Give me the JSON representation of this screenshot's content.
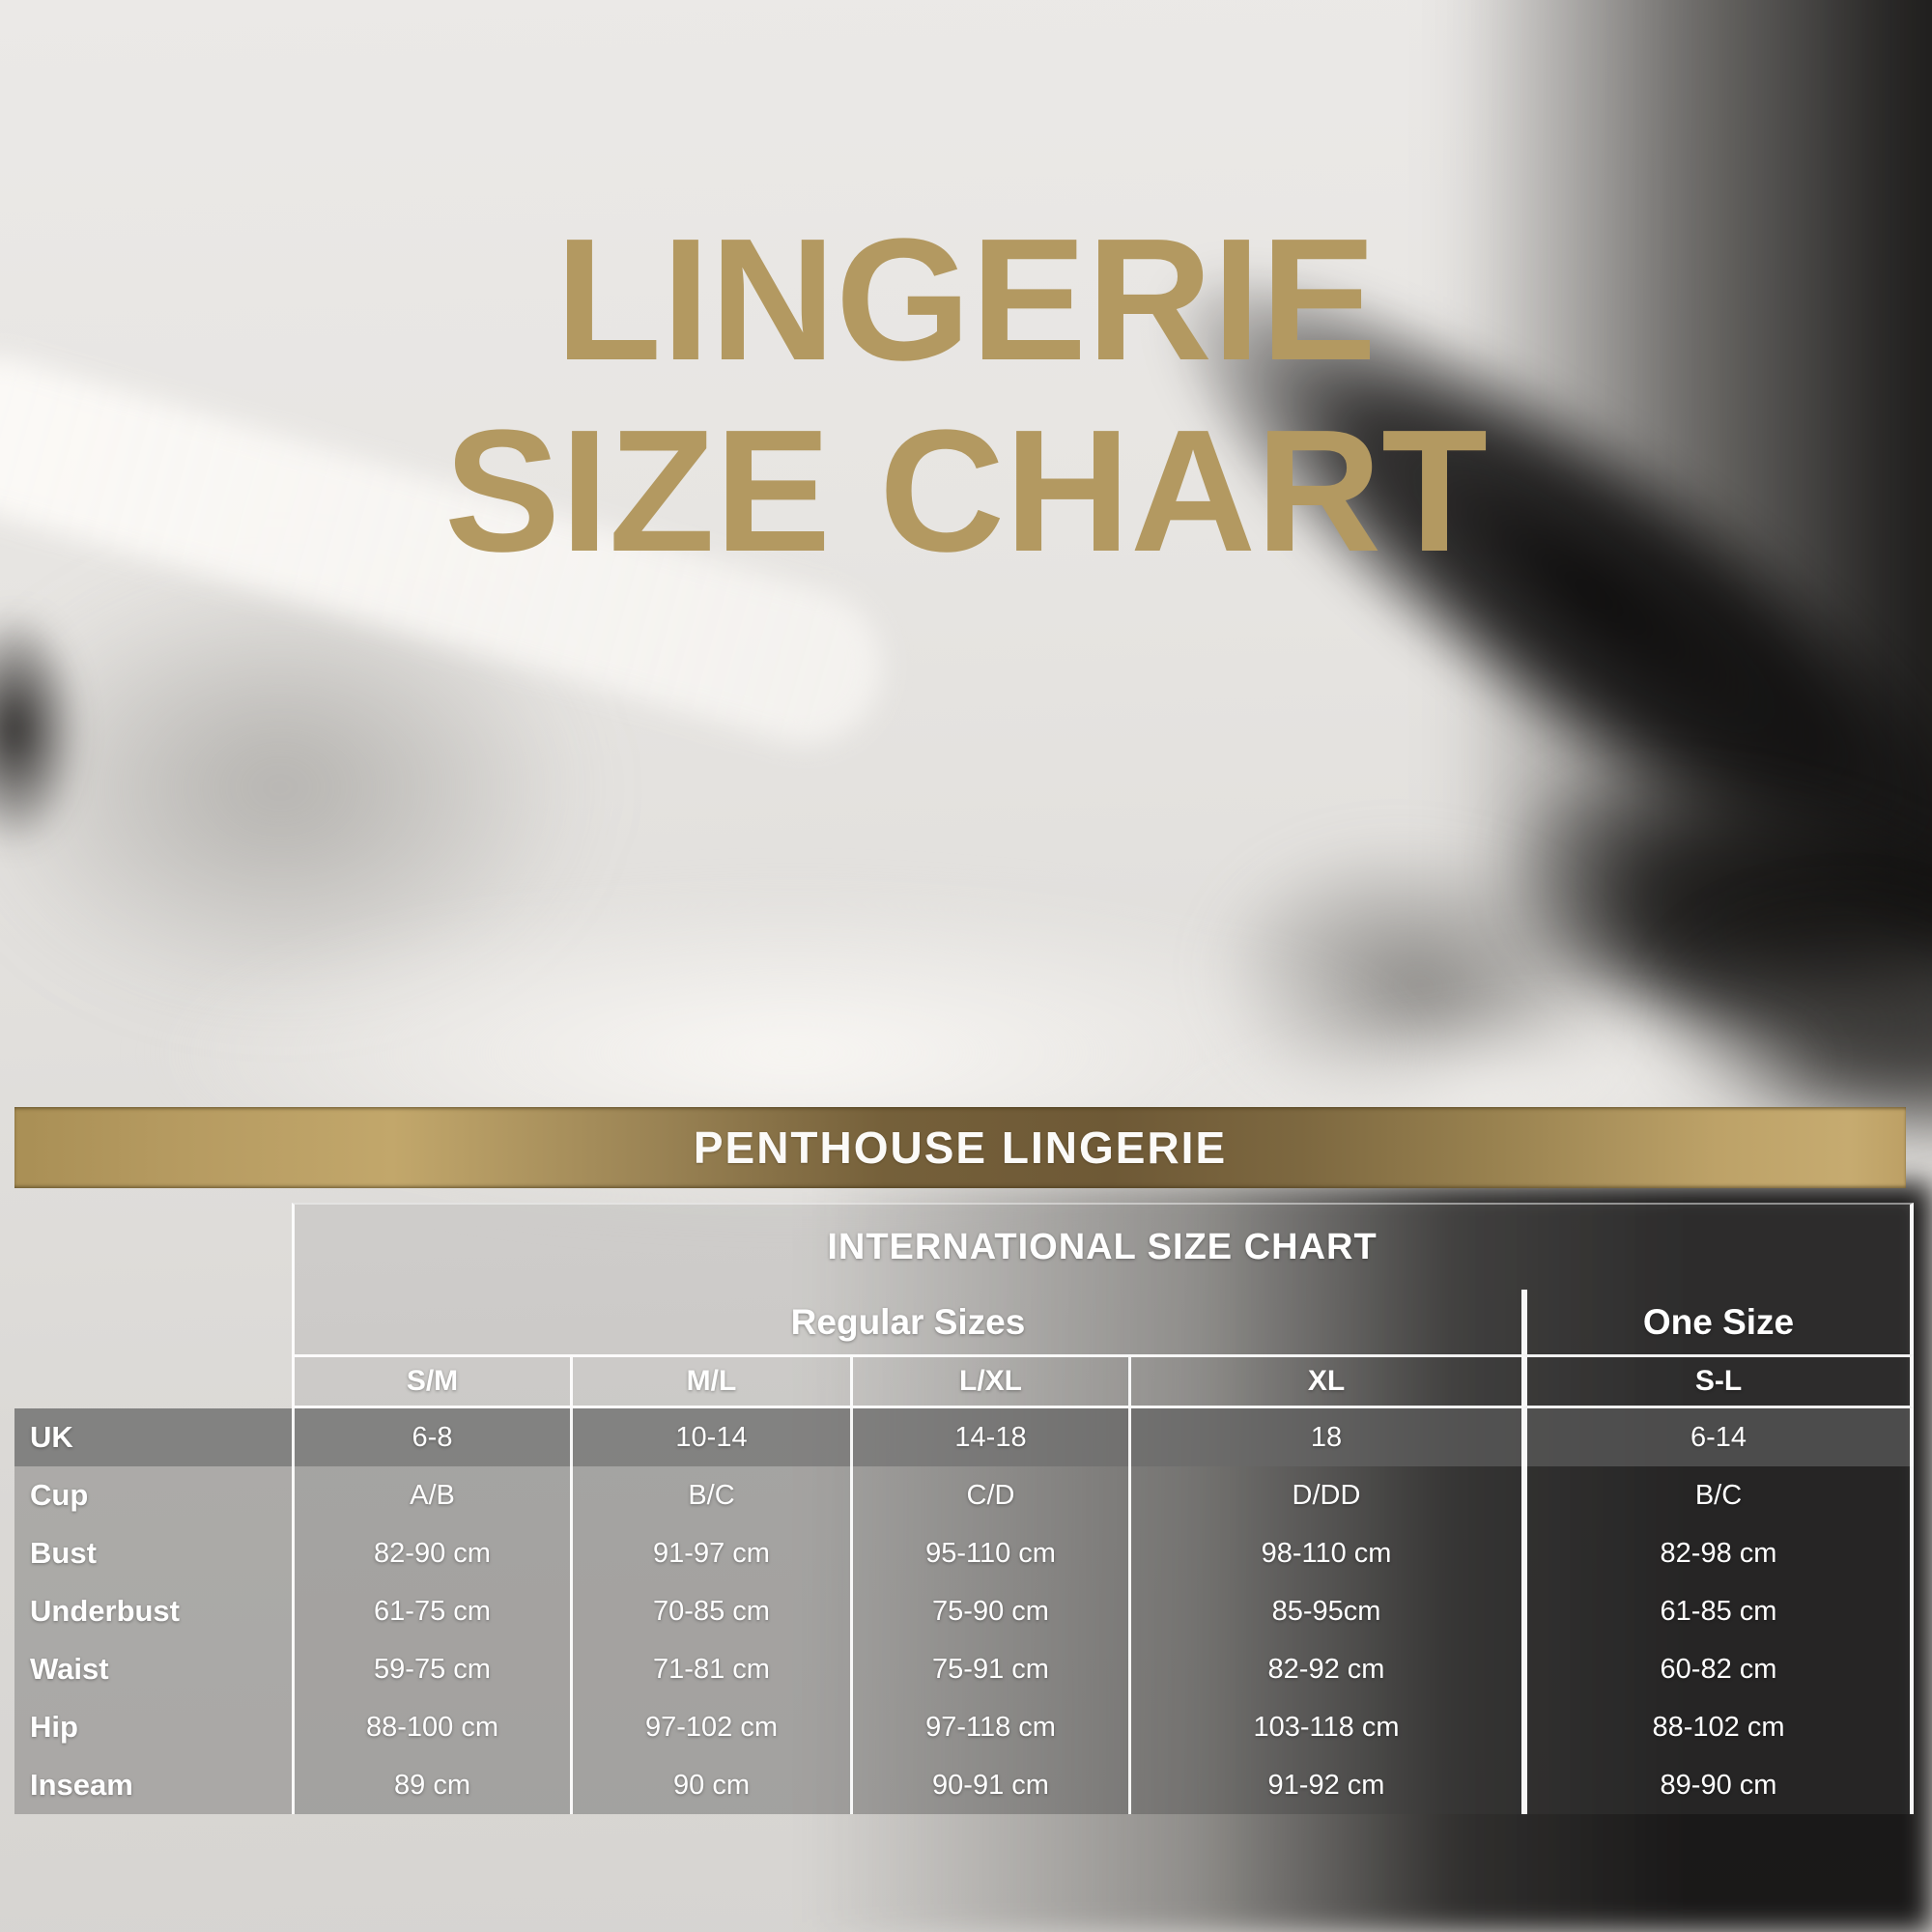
{
  "title": {
    "line1": "LINGERIE",
    "line2": "SIZE CHART"
  },
  "banner": {
    "label": "PENTHOUSE LINGERIE"
  },
  "size_chart": {
    "header": "INTERNATIONAL SIZE CHART",
    "groups": {
      "regular": "Regular Sizes",
      "one_size": "One Size"
    },
    "columns": [
      "S/M",
      "M/L",
      "L/XL",
      "XL",
      "S-L"
    ],
    "rows": [
      {
        "label": "UK",
        "highlighted": true,
        "values": [
          "6-8",
          "10-14",
          "14-18",
          "18",
          "6-14"
        ]
      },
      {
        "label": "Cup",
        "highlighted": false,
        "values": [
          "A/B",
          "B/C",
          "C/D",
          "D/DD",
          "B/C"
        ]
      },
      {
        "label": "Bust",
        "highlighted": false,
        "values": [
          "82-90 cm",
          "91-97 cm",
          "95-110 cm",
          "98-110 cm",
          "82-98 cm"
        ]
      },
      {
        "label": "Underbust",
        "highlighted": false,
        "values": [
          "61-75 cm",
          "70-85 cm",
          "75-90 cm",
          "85-95cm",
          "61-85 cm"
        ]
      },
      {
        "label": "Waist",
        "highlighted": false,
        "values": [
          "59-75 cm",
          "71-81 cm",
          "75-91 cm",
          "82-92 cm",
          "60-82 cm"
        ]
      },
      {
        "label": "Hip",
        "highlighted": false,
        "values": [
          "88-100 cm",
          "97-102 cm",
          "97-118 cm",
          "103-118 cm",
          "88-102 cm"
        ]
      },
      {
        "label": "Inseam",
        "highlighted": false,
        "values": [
          "89 cm",
          "90 cm",
          "90-91 cm",
          "91-92 cm",
          "89-90 cm"
        ]
      }
    ]
  },
  "colors": {
    "title_gold": "#b39961",
    "banner_gold_light": "#c6ab70",
    "banner_gold_dark": "#6e5936",
    "table_border": "#ffffff",
    "text": "#ffffff"
  }
}
